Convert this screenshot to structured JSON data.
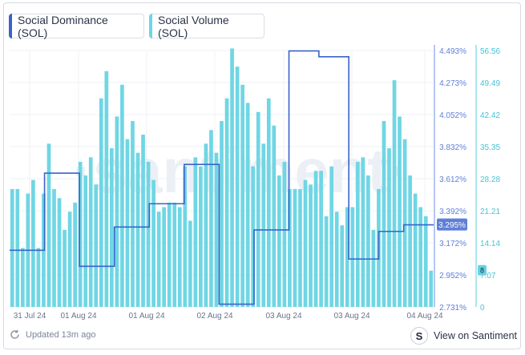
{
  "legend": {
    "dominance_label": "Social Dominance (SOL)",
    "volume_label": "Social Volume (SOL)"
  },
  "watermark": "·santiment·",
  "footer": {
    "updated": "Updated 13m ago",
    "view_link": "View on Santiment",
    "logo": "S"
  },
  "colors": {
    "volume_bar": "#6fd6e4",
    "dominance_line": "#3b63c9",
    "dominance_axis": "#6d8fe0",
    "volume_axis": "#5ccfe0",
    "badge_bg": "#5f7fd8",
    "volume_badge_bg": "#67d3e3"
  },
  "chart_data": {
    "type": "bar",
    "series": [
      {
        "name": "Social Volume (SOL)",
        "kind": "bar",
        "axis": "right",
        "values": [
          26,
          26,
          13,
          25,
          28,
          13,
          25,
          36,
          26,
          24,
          17,
          21,
          23,
          32,
          29,
          33,
          27,
          46,
          52,
          35,
          42,
          49,
          37,
          41,
          34,
          38,
          32,
          28,
          21,
          22,
          23,
          23,
          22,
          31,
          19,
          33,
          31,
          36,
          39,
          34,
          41,
          46,
          57,
          53,
          49,
          45,
          31,
          43,
          36,
          46,
          40,
          29,
          32,
          26,
          26,
          26,
          28,
          27,
          30,
          30,
          20,
          31,
          21,
          18,
          22,
          22,
          32,
          33,
          29,
          17,
          26,
          41,
          35,
          50,
          42,
          37,
          29,
          25,
          22,
          20,
          8
        ]
      },
      {
        "name": "Social Dominance (SOL)",
        "kind": "line",
        "axis": "left",
        "values": [
          3.12,
          3.12,
          3.12,
          3.12,
          3.12,
          3.12,
          3.12,
          3.65,
          3.65,
          3.65,
          3.65,
          3.65,
          3.65,
          3.65,
          3.01,
          3.01,
          3.01,
          3.01,
          3.01,
          3.01,
          3.01,
          3.28,
          3.28,
          3.28,
          3.28,
          3.28,
          3.28,
          3.28,
          3.44,
          3.44,
          3.44,
          3.44,
          3.44,
          3.44,
          3.44,
          3.71,
          3.71,
          3.71,
          3.71,
          3.71,
          3.71,
          3.71,
          2.75,
          2.75,
          2.75,
          2.75,
          2.75,
          2.75,
          2.75,
          3.26,
          3.26,
          3.26,
          3.26,
          3.26,
          3.26,
          3.26,
          4.49,
          4.49,
          4.49,
          4.49,
          4.49,
          4.49,
          4.45,
          4.45,
          4.45,
          4.45,
          4.45,
          4.45,
          3.06,
          3.06,
          3.06,
          3.06,
          3.06,
          3.06,
          3.25,
          3.25,
          3.25,
          3.25,
          3.25,
          3.295,
          3.295,
          3.295,
          3.295,
          3.295,
          3.295
        ]
      }
    ],
    "x_ticks": [
      "31 Jul 24",
      "01 Aug 24",
      "01 Aug 24",
      "02 Aug 24",
      "03 Aug 24",
      "03 Aug 24",
      "04 Aug 24"
    ],
    "y_left": {
      "ticks": [
        "4.493%",
        "4.273%",
        "4.052%",
        "3.832%",
        "3.612%",
        "3.392%",
        "3.172%",
        "2.952%",
        "2.731%"
      ],
      "range": [
        2.731,
        4.493
      ]
    },
    "y_right": {
      "ticks": [
        "56.56",
        "49.49",
        "42.42",
        "35.35",
        "28.28",
        "21.21",
        "14.14",
        "7.07",
        "0"
      ],
      "range": [
        0,
        56.56
      ]
    },
    "current_dominance": "3.295%",
    "current_volume": "8",
    "grid": true
  }
}
